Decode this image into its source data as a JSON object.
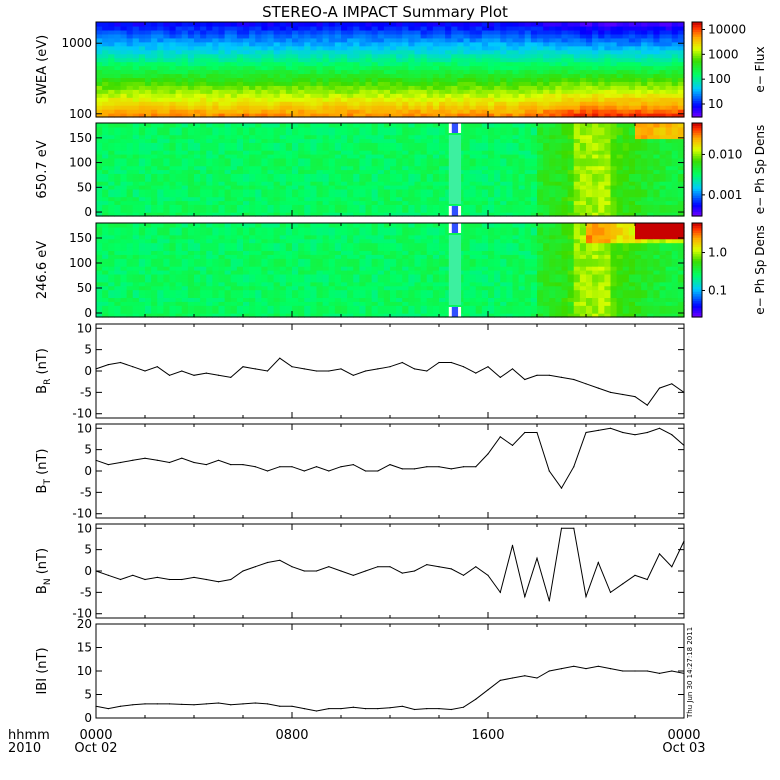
{
  "title": "STEREO-A IMPACT Summary Plot",
  "footer": {
    "time_label": "hhmm",
    "year_label": "2010",
    "timestamp": "Thu Jun 30 14:27:18 2011"
  },
  "x_axis": {
    "ticks": [
      {
        "hour": 0,
        "label": "0000",
        "sublabel": "Oct 02"
      },
      {
        "hour": 8,
        "label": "0800",
        "sublabel": ""
      },
      {
        "hour": 16,
        "label": "1600",
        "sublabel": ""
      },
      {
        "hour": 24,
        "label": "0000",
        "sublabel": "Oct 03"
      }
    ]
  },
  "chart_data": [
    {
      "type": "heatmap",
      "ylabel": "SWEA (eV)",
      "yscale": "log",
      "ylim": [
        90,
        2000
      ],
      "yticks": [
        {
          "value": 100,
          "label": "100"
        },
        {
          "value": 1000,
          "label": "1000"
        }
      ],
      "colorbar": {
        "label": "e− Flux",
        "scale": "log",
        "range": [
          3,
          20000
        ],
        "ticks": [
          {
            "value": 10000,
            "label": "10000"
          },
          {
            "value": 1000,
            "label": "1000"
          },
          {
            "value": 100,
            "label": "100"
          },
          {
            "value": 10,
            "label": "10"
          }
        ]
      }
    },
    {
      "type": "heatmap",
      "ylabel": "650.7 eV",
      "ylim": [
        -8,
        180
      ],
      "yticks": [
        {
          "value": 0,
          "label": "0"
        },
        {
          "value": 50,
          "label": "50"
        },
        {
          "value": 100,
          "label": "100"
        },
        {
          "value": 150,
          "label": "150"
        }
      ],
      "data_gap_hours": [
        14.4,
        14.9
      ],
      "colorbar": {
        "label": "e− Ph Sp Dens",
        "scale": "log",
        "range": [
          0.0003,
          0.06
        ],
        "ticks": [
          {
            "value": 0.01,
            "label": "0.010"
          },
          {
            "value": 0.001,
            "label": "0.001"
          }
        ]
      }
    },
    {
      "type": "heatmap",
      "ylabel": "246.6 eV",
      "ylim": [
        -8,
        180
      ],
      "yticks": [
        {
          "value": 0,
          "label": "0"
        },
        {
          "value": 50,
          "label": "50"
        },
        {
          "value": 100,
          "label": "100"
        },
        {
          "value": 150,
          "label": "150"
        }
      ],
      "data_gap_hours": [
        14.4,
        14.9
      ],
      "colorbar": {
        "label": "e− Ph Sp Dens",
        "scale": "log",
        "range": [
          0.02,
          6
        ],
        "ticks": [
          {
            "value": 1,
            "label": "1.0"
          },
          {
            "value": 0.1,
            "label": "0.1"
          }
        ]
      }
    },
    {
      "type": "line",
      "ylabel": "B",
      "ylabel_sub": "R",
      "ylabel_unit": "(nT)",
      "ylim": [
        -11,
        11
      ],
      "yticks": [
        {
          "value": 10,
          "label": "10"
        },
        {
          "value": 5,
          "label": "5"
        },
        {
          "value": 0,
          "label": "0"
        },
        {
          "value": -5,
          "label": "-5"
        },
        {
          "value": -10,
          "label": "-10"
        }
      ],
      "x_hours": [
        0,
        0.5,
        1,
        1.5,
        2,
        2.5,
        3,
        3.5,
        4,
        4.5,
        5,
        5.5,
        6,
        6.5,
        7,
        7.5,
        8,
        8.5,
        9,
        9.5,
        10,
        10.5,
        11,
        11.5,
        12,
        12.5,
        13,
        13.5,
        14,
        14.5,
        15,
        15.5,
        16,
        16.5,
        17,
        17.5,
        18,
        18.5,
        19,
        19.5,
        20,
        20.5,
        21,
        21.5,
        22,
        22.5,
        23,
        23.5,
        24
      ],
      "values": [
        0.5,
        1.5,
        2,
        1,
        0,
        1,
        -1,
        0,
        -1,
        -0.5,
        -1,
        -1.5,
        1,
        0.5,
        0,
        3,
        1,
        0.5,
        0,
        0,
        0.5,
        -1,
        0,
        0.5,
        1,
        2,
        0.5,
        0,
        2,
        2,
        1,
        -0.5,
        1,
        -1.5,
        0.5,
        -2,
        -1,
        -1,
        -1.5,
        -2,
        -3,
        -4,
        -5,
        -5.5,
        -6,
        -8,
        -4,
        -3,
        -5
      ]
    },
    {
      "type": "line",
      "ylabel": "B",
      "ylabel_sub": "T",
      "ylabel_unit": "(nT)",
      "ylim": [
        -11,
        11
      ],
      "yticks": [
        {
          "value": 10,
          "label": "10"
        },
        {
          "value": 5,
          "label": "5"
        },
        {
          "value": 0,
          "label": "0"
        },
        {
          "value": -5,
          "label": "-5"
        },
        {
          "value": -10,
          "label": "-10"
        }
      ],
      "x_hours": [
        0,
        0.5,
        1,
        1.5,
        2,
        2.5,
        3,
        3.5,
        4,
        4.5,
        5,
        5.5,
        6,
        6.5,
        7,
        7.5,
        8,
        8.5,
        9,
        9.5,
        10,
        10.5,
        11,
        11.5,
        12,
        12.5,
        13,
        13.5,
        14,
        14.5,
        15,
        15.5,
        16,
        16.5,
        17,
        17.5,
        18,
        18.5,
        19,
        19.5,
        20,
        20.5,
        21,
        21.5,
        22,
        22.5,
        23,
        23.5,
        24
      ],
      "values": [
        2.5,
        1.5,
        2,
        2.5,
        3,
        2.5,
        2,
        3,
        2,
        1.5,
        2.5,
        1.5,
        1.5,
        1,
        0,
        1,
        1,
        0,
        1,
        0,
        1,
        1.5,
        0,
        0,
        1.5,
        0.5,
        0.5,
        1,
        1,
        0.5,
        1,
        1,
        4,
        8,
        6,
        9,
        9,
        0,
        -4,
        1,
        9,
        9.5,
        10,
        9,
        8.5,
        9,
        10,
        8.5,
        6
      ]
    },
    {
      "type": "line",
      "ylabel": "B",
      "ylabel_sub": "N",
      "ylabel_unit": "(nT)",
      "ylim": [
        -11,
        11
      ],
      "yticks": [
        {
          "value": 10,
          "label": "10"
        },
        {
          "value": 5,
          "label": "5"
        },
        {
          "value": 0,
          "label": "0"
        },
        {
          "value": -5,
          "label": "-5"
        },
        {
          "value": -10,
          "label": "-10"
        }
      ],
      "x_hours": [
        0,
        0.5,
        1,
        1.5,
        2,
        2.5,
        3,
        3.5,
        4,
        4.5,
        5,
        5.5,
        6,
        6.5,
        7,
        7.5,
        8,
        8.5,
        9,
        9.5,
        10,
        10.5,
        11,
        11.5,
        12,
        12.5,
        13,
        13.5,
        14,
        14.5,
        15,
        15.5,
        16,
        16.5,
        17,
        17.5,
        18,
        18.5,
        19,
        19.5,
        20,
        20.5,
        21,
        21.5,
        22,
        22.5,
        23,
        23.5,
        24
      ],
      "values": [
        0,
        -1,
        -2,
        -1,
        -2,
        -1.5,
        -2,
        -2,
        -1.5,
        -2,
        -2.5,
        -2,
        0,
        1,
        2,
        2.5,
        1,
        0,
        0,
        1,
        0,
        -1,
        0,
        1,
        1,
        -0.5,
        0,
        1.5,
        1,
        0.5,
        -1,
        1,
        -1,
        -5,
        6,
        -6,
        3,
        -7,
        10,
        10,
        -6,
        2,
        -5,
        -3,
        -1,
        -2,
        4,
        1,
        7
      ]
    },
    {
      "type": "line",
      "ylabel": "IBI",
      "ylabel_unit": "(nT)",
      "ylim": [
        0,
        20
      ],
      "yticks": [
        {
          "value": 20,
          "label": "20"
        },
        {
          "value": 15,
          "label": "15"
        },
        {
          "value": 10,
          "label": "10"
        },
        {
          "value": 5,
          "label": "5"
        },
        {
          "value": 0,
          "label": "0"
        }
      ],
      "x_hours": [
        0,
        0.5,
        1,
        1.5,
        2,
        2.5,
        3,
        3.5,
        4,
        4.5,
        5,
        5.5,
        6,
        6.5,
        7,
        7.5,
        8,
        8.5,
        9,
        9.5,
        10,
        10.5,
        11,
        11.5,
        12,
        12.5,
        13,
        13.5,
        14,
        14.5,
        15,
        15.5,
        16,
        16.5,
        17,
        17.5,
        18,
        18.5,
        19,
        19.5,
        20,
        20.5,
        21,
        21.5,
        22,
        22.5,
        23,
        23.5,
        24
      ],
      "values": [
        2.5,
        2,
        2.5,
        2.8,
        3,
        3,
        3,
        2.9,
        2.8,
        3,
        3.2,
        2.8,
        3,
        3.2,
        3,
        2.5,
        2.5,
        2,
        1.5,
        2,
        2,
        2.3,
        2,
        2,
        2.2,
        2.5,
        1.8,
        2,
        2,
        1.8,
        2.3,
        4,
        6,
        8,
        8.5,
        9,
        8.5,
        10,
        10.5,
        11,
        10.5,
        11,
        10.5,
        10,
        10,
        10,
        9.5,
        10,
        9.5
      ]
    }
  ]
}
